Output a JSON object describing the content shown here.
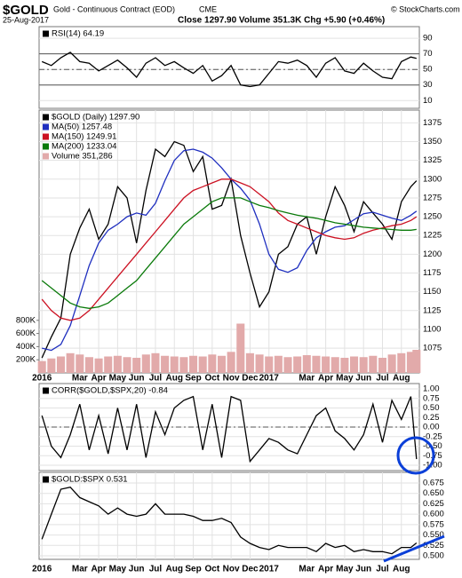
{
  "header": {
    "title": "$GOLD",
    "subtitle": "Gold - Continuous Contract (EOD)",
    "exchange": "CME",
    "date": "25-Aug-2017",
    "stats": "Close 1297.90 Volume 351.3K Chg +5.90 (+0.46%)",
    "watermark": "© StockCharts.com"
  },
  "chart_data": [
    {
      "type": "line",
      "x": [
        0,
        0.5,
        1,
        1.5,
        2,
        2.5,
        3,
        3.5,
        4,
        4.5,
        5,
        5.5,
        6,
        6.5,
        7,
        7.5,
        8,
        8.5,
        9,
        9.5,
        10,
        10.5,
        11,
        11.5,
        12,
        12.5,
        13,
        13.5,
        14,
        14.5,
        15,
        15.5,
        16,
        16.5,
        17,
        17.5,
        18,
        18.5,
        19,
        19.5,
        19.8
      ],
      "xlim": [
        -0.15,
        19.95
      ],
      "ylim": [
        0,
        105
      ],
      "yticks": [
        90,
        70,
        50,
        30,
        10
      ],
      "hlines": [
        {
          "value": 70,
          "dash": false
        },
        {
          "value": 50,
          "dash": true
        },
        {
          "value": 30,
          "dash": false
        }
      ],
      "series": [
        {
          "name": "RSI(14) 64.19",
          "color": "#000000",
          "values": [
            60,
            55,
            65,
            72,
            60,
            58,
            48,
            55,
            62,
            52,
            40,
            58,
            65,
            55,
            60,
            52,
            45,
            55,
            35,
            42,
            55,
            30,
            28,
            30,
            45,
            60,
            58,
            62,
            55,
            40,
            58,
            65,
            48,
            45,
            58,
            48,
            40,
            38,
            60,
            66,
            64.19
          ]
        }
      ]
    },
    {
      "type": "line",
      "x": [
        0,
        0.5,
        1,
        1.5,
        2,
        2.5,
        3,
        3.5,
        4,
        4.5,
        5,
        5.5,
        6,
        6.5,
        7,
        7.5,
        8,
        8.5,
        9,
        9.5,
        10,
        10.5,
        11,
        11.5,
        12,
        12.5,
        13,
        13.5,
        14,
        14.5,
        15,
        15.5,
        16,
        16.5,
        17,
        17.5,
        18,
        18.5,
        19,
        19.5,
        19.8
      ],
      "xlim": [
        -0.15,
        19.95
      ],
      "xticks": [
        {
          "value": 0,
          "label": "2016"
        },
        {
          "value": 2,
          "label": "Mar"
        },
        {
          "value": 3,
          "label": "Apr"
        },
        {
          "value": 4,
          "label": "May"
        },
        {
          "value": 5,
          "label": "Jun"
        },
        {
          "value": 6,
          "label": "Jul"
        },
        {
          "value": 7,
          "label": "Aug"
        },
        {
          "value": 8,
          "label": "Sep"
        },
        {
          "value": 9,
          "label": "Oct"
        },
        {
          "value": 10,
          "label": "Nov"
        },
        {
          "value": 11,
          "label": "Dec"
        },
        {
          "value": 12,
          "label": "2017"
        },
        {
          "value": 14,
          "label": "Mar"
        },
        {
          "value": 15,
          "label": "Apr"
        },
        {
          "value": 16,
          "label": "May"
        },
        {
          "value": 17,
          "label": "Jun"
        },
        {
          "value": 18,
          "label": "Jul"
        },
        {
          "value": 19,
          "label": "Aug"
        }
      ],
      "ylim": [
        1042,
        1392
      ],
      "yticks": [
        1375,
        1350,
        1325,
        1300,
        1275,
        1250,
        1225,
        1200,
        1175,
        1150,
        1125,
        1100,
        1075
      ],
      "y2lim": [
        0,
        4000000
      ],
      "y2ticks": [
        {
          "value": 800000,
          "label": "800K"
        },
        {
          "value": 600000,
          "label": "600K"
        },
        {
          "value": 400000,
          "label": "400K"
        },
        {
          "value": 200000,
          "label": "200K"
        }
      ],
      "series": [
        {
          "name": "Volume 351,286",
          "color": "#e2aaaa",
          "type": "bar",
          "axis": "y2",
          "values": [
            180000,
            220000,
            250000,
            300000,
            280000,
            240000,
            220000,
            250000,
            260000,
            240000,
            230000,
            280000,
            300000,
            260000,
            250000,
            240000,
            260000,
            250000,
            280000,
            260000,
            320000,
            750000,
            300000,
            280000,
            250000,
            260000,
            240000,
            250000,
            270000,
            260000,
            250000,
            240000,
            230000,
            250000,
            240000,
            260000,
            230000,
            280000,
            300000,
            320000,
            351286
          ]
        },
        {
          "name": "$GOLD (Daily) 1297.90",
          "color": "#000000",
          "values": [
            1062,
            1090,
            1115,
            1200,
            1235,
            1260,
            1220,
            1240,
            1290,
            1275,
            1215,
            1285,
            1340,
            1330,
            1350,
            1345,
            1310,
            1330,
            1260,
            1265,
            1300,
            1225,
            1175,
            1130,
            1150,
            1200,
            1210,
            1240,
            1250,
            1200,
            1250,
            1290,
            1265,
            1230,
            1270,
            1255,
            1240,
            1220,
            1270,
            1290,
            1297.9
          ]
        },
        {
          "name": "MA(50) 1257.48",
          "color": "#1f2fbf",
          "values": [
            1075,
            1072,
            1080,
            1105,
            1145,
            1185,
            1215,
            1232,
            1240,
            1250,
            1255,
            1252,
            1268,
            1298,
            1325,
            1338,
            1340,
            1336,
            1328,
            1315,
            1300,
            1288,
            1272,
            1240,
            1200,
            1180,
            1176,
            1182,
            1205,
            1222,
            1230,
            1236,
            1238,
            1246,
            1254,
            1256,
            1252,
            1248,
            1245,
            1252,
            1257.48
          ]
        },
        {
          "name": "MA(150) 1249.91",
          "color": "#cc1122",
          "values": [
            1140,
            1125,
            1115,
            1112,
            1115,
            1125,
            1140,
            1155,
            1170,
            1185,
            1200,
            1215,
            1230,
            1245,
            1260,
            1275,
            1285,
            1290,
            1295,
            1300,
            1300,
            1295,
            1290,
            1280,
            1270,
            1255,
            1245,
            1240,
            1235,
            1230,
            1225,
            1222,
            1220,
            1222,
            1228,
            1232,
            1235,
            1238,
            1240,
            1245,
            1249.91
          ]
        },
        {
          "name": "MA(200) 1233.04",
          "color": "#0a7a0a",
          "values": [
            1165,
            1155,
            1145,
            1135,
            1130,
            1128,
            1130,
            1135,
            1145,
            1155,
            1165,
            1180,
            1195,
            1210,
            1225,
            1240,
            1250,
            1260,
            1270,
            1275,
            1275,
            1275,
            1270,
            1265,
            1262,
            1258,
            1255,
            1252,
            1250,
            1248,
            1245,
            1242,
            1240,
            1238,
            1236,
            1235,
            1234,
            1233,
            1232,
            1232,
            1233.04
          ]
        }
      ]
    },
    {
      "type": "line",
      "x": [
        0,
        0.5,
        1,
        1.5,
        2,
        2.5,
        3,
        3.5,
        4,
        4.5,
        5,
        5.5,
        6,
        6.5,
        7,
        7.5,
        8,
        8.5,
        9,
        9.5,
        10,
        10.5,
        11,
        11.5,
        12,
        12.5,
        13,
        13.5,
        14,
        14.5,
        15,
        15.5,
        16,
        16.5,
        17,
        17.5,
        18,
        18.5,
        19,
        19.5,
        19.8
      ],
      "xlim": [
        -0.15,
        19.95
      ],
      "ylim": [
        -1.14,
        1.14
      ],
      "yticks": [
        {
          "value": 1,
          "label": "1.00"
        },
        0.75,
        {
          "value": 0.5,
          "label": "0.50"
        },
        0.25,
        {
          "value": 0,
          "label": "0.00"
        },
        -0.25,
        {
          "value": -0.5,
          "label": "-0.50"
        },
        -0.75,
        {
          "value": -1,
          "label": "-1.00"
        }
      ],
      "hlines": [
        {
          "value": 0,
          "dash": true
        }
      ],
      "series": [
        {
          "name": "CORR($GOLD,$SPX,20) -0.84",
          "color": "#000000",
          "values": [
            0.3,
            -0.5,
            -0.8,
            -0.2,
            0.6,
            -0.6,
            0.3,
            -0.7,
            0.5,
            -0.6,
            0.6,
            -0.8,
            0.4,
            -0.2,
            0.5,
            0.7,
            0.8,
            -0.6,
            0.6,
            -0.8,
            0.8,
            0.7,
            -0.9,
            -0.6,
            -0.3,
            -0.4,
            -0.6,
            -0.7,
            -0.2,
            0.3,
            0.5,
            -0.1,
            -0.3,
            -0.6,
            -0.2,
            0.6,
            -0.4,
            0.7,
            0.2,
            0.8,
            -0.84
          ]
        }
      ]
    },
    {
      "type": "line",
      "x": [
        0,
        0.5,
        1,
        1.5,
        2,
        2.5,
        3,
        3.5,
        4,
        4.5,
        5,
        5.5,
        6,
        6.5,
        7,
        7.5,
        8,
        8.5,
        9,
        9.5,
        10,
        10.5,
        11,
        11.5,
        12,
        12.5,
        13,
        13.5,
        14,
        14.5,
        15,
        15.5,
        16,
        16.5,
        17,
        17.5,
        18,
        18.5,
        19,
        19.5,
        19.8
      ],
      "xlim": [
        -0.15,
        19.95
      ],
      "xticks": [
        {
          "value": 0,
          "label": "2016"
        },
        {
          "value": 2,
          "label": "Mar"
        },
        {
          "value": 3,
          "label": "Apr"
        },
        {
          "value": 4,
          "label": "May"
        },
        {
          "value": 5,
          "label": "Jun"
        },
        {
          "value": 6,
          "label": "Jul"
        },
        {
          "value": 7,
          "label": "Aug"
        },
        {
          "value": 8,
          "label": "Sep"
        },
        {
          "value": 9,
          "label": "Oct"
        },
        {
          "value": 10,
          "label": "Nov"
        },
        {
          "value": 11,
          "label": "Dec"
        },
        {
          "value": 12,
          "label": "2017"
        },
        {
          "value": 14,
          "label": "Mar"
        },
        {
          "value": 15,
          "label": "Apr"
        },
        {
          "value": 16,
          "label": "May"
        },
        {
          "value": 17,
          "label": "Jun"
        },
        {
          "value": 18,
          "label": "Jul"
        },
        {
          "value": 19,
          "label": "Aug"
        }
      ],
      "ylim": [
        0.4915,
        0.7006
      ],
      "yticks": [
        0.675,
        {
          "value": 0.65,
          "label": "0.650"
        },
        0.625,
        {
          "value": 0.6,
          "label": "0.600"
        },
        0.575,
        {
          "value": 0.55,
          "label": "0.550"
        },
        0.525,
        {
          "value": 0.5,
          "label": "0.500"
        }
      ],
      "series": [
        {
          "name": "$GOLD:$SPX 0.531",
          "color": "#000000",
          "values": [
            0.54,
            0.6,
            0.66,
            0.665,
            0.64,
            0.63,
            0.62,
            0.6,
            0.615,
            0.6,
            0.595,
            0.6,
            0.625,
            0.6,
            0.6,
            0.6,
            0.595,
            0.585,
            0.585,
            0.59,
            0.58,
            0.545,
            0.53,
            0.52,
            0.515,
            0.525,
            0.52,
            0.52,
            0.52,
            0.51,
            0.53,
            0.52,
            0.525,
            0.51,
            0.515,
            0.51,
            0.51,
            0.505,
            0.52,
            0.52,
            0.531
          ]
        }
      ]
    }
  ]
}
